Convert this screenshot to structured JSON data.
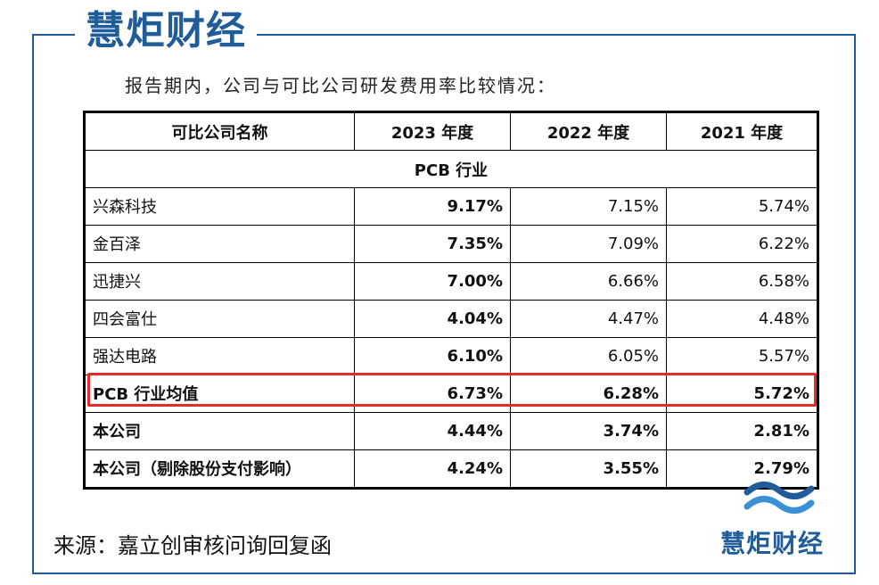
{
  "brand": {
    "name": "慧炬财经"
  },
  "intro": "报告期内，公司与可比公司研发费用率比较情况：",
  "table": {
    "headers": [
      "可比公司名称",
      "2023 年度",
      "2022 年度",
      "2021 年度"
    ],
    "section": "PCB 行业",
    "rows": [
      {
        "name": "兴森科技",
        "v2023": "9.17%",
        "v2022": "7.15%",
        "v2021": "5.74%"
      },
      {
        "name": "金百泽",
        "v2023": "7.35%",
        "v2022": "7.09%",
        "v2021": "6.22%"
      },
      {
        "name": "迅捷兴",
        "v2023": "7.00%",
        "v2022": "6.66%",
        "v2021": "6.58%"
      },
      {
        "name": "四会富仕",
        "v2023": "4.04%",
        "v2022": "4.47%",
        "v2021": "4.48%"
      },
      {
        "name": "强达电路",
        "v2023": "6.10%",
        "v2022": "6.05%",
        "v2021": "5.57%"
      }
    ],
    "average": {
      "name": "PCB 行业均值",
      "v2023": "6.73%",
      "v2022": "6.28%",
      "v2021": "5.72%"
    },
    "company": {
      "name": "本公司",
      "v2023": "4.44%",
      "v2022": "3.74%",
      "v2021": "2.81%"
    },
    "company_adj": {
      "name": "本公司（剔除股份支付影响）",
      "v2023": "4.24%",
      "v2022": "3.55%",
      "v2021": "2.79%"
    }
  },
  "source": "来源：嘉立创审核问询回复函",
  "colors": {
    "brand_blue": "#1f5c99",
    "highlight_red": "#e52c2c",
    "accent_red": "#e0302a"
  }
}
